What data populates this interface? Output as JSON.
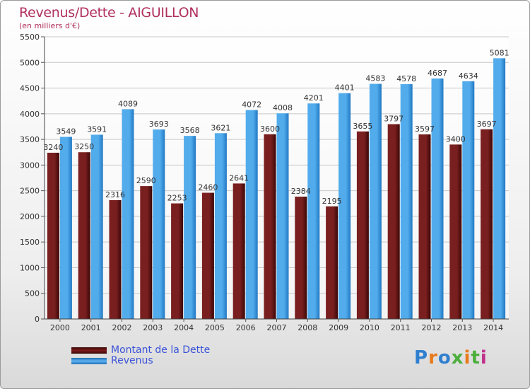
{
  "header": {
    "title": "Revenus/Dette - AIGUILLON",
    "subtitle": "(en milliers d'€)"
  },
  "chart_data": {
    "type": "bar",
    "categories": [
      "2000",
      "2001",
      "2002",
      "2003",
      "2004",
      "2005",
      "2006",
      "2007",
      "2008",
      "2009",
      "2010",
      "2011",
      "2012",
      "2013",
      "2014"
    ],
    "series": [
      {
        "name": "Montant de la Dette",
        "color": "#7a1a1a",
        "values": [
          3240,
          3250,
          2316,
          2590,
          2253,
          2460,
          2641,
          3600,
          2384,
          2195,
          3655,
          3797,
          3597,
          3400,
          3697
        ],
        "labels": [
          "3240",
          "3250",
          "2316",
          "2590",
          "2253",
          "2460",
          "2641",
          "3600",
          "2384",
          "2195",
          "3655",
          "3797",
          "3597",
          "3400",
          "3697"
        ]
      },
      {
        "name": "Revenus",
        "color": "#4aa3e8",
        "values": [
          3549,
          3591,
          4089,
          3693,
          3568,
          3621,
          4072,
          4008,
          4201,
          4401,
          4583,
          4578,
          4687,
          4634,
          5081
        ],
        "labels": [
          "3549",
          "3591",
          "4089",
          "3693",
          "3568",
          "3621",
          "4072",
          "4008",
          "4201",
          "4401",
          "4583",
          "4578",
          "4687",
          "4634",
          "5081"
        ]
      }
    ],
    "yticks": [
      "0",
      "500",
      "1000",
      "1500",
      "2000",
      "2500",
      "3000",
      "3500",
      "4000",
      "4500",
      "5000",
      "5500"
    ],
    "ylim": [
      0,
      5500
    ],
    "grid": true,
    "legend_position": "bottom-left"
  },
  "legend": {
    "items": [
      {
        "label": "Montant de la Dette",
        "color": "#7a1a1a"
      },
      {
        "label": "Revenus",
        "color": "#4aa3e8"
      }
    ]
  },
  "logo": {
    "letters": [
      "P",
      "r",
      "o",
      "x",
      "i",
      "t",
      "i"
    ],
    "colors": [
      "#2f7fd0",
      "#e87a1a",
      "#2f7fd0",
      "#4cae3c",
      "#e87a1a",
      "#4cae3c",
      "#c0308a"
    ]
  }
}
